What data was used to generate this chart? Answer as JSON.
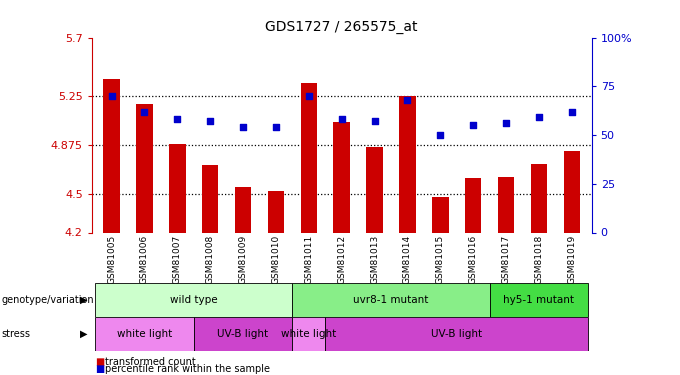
{
  "title": "GDS1727 / 265575_at",
  "samples": [
    "GSM81005",
    "GSM81006",
    "GSM81007",
    "GSM81008",
    "GSM81009",
    "GSM81010",
    "GSM81011",
    "GSM81012",
    "GSM81013",
    "GSM81014",
    "GSM81015",
    "GSM81016",
    "GSM81017",
    "GSM81018",
    "GSM81019"
  ],
  "transformed_count": [
    5.38,
    5.19,
    4.88,
    4.72,
    4.55,
    4.52,
    5.35,
    5.05,
    4.86,
    5.25,
    4.47,
    4.62,
    4.63,
    4.73,
    4.83
  ],
  "percentile_rank": [
    70,
    62,
    58,
    57,
    54,
    54,
    70,
    58,
    57,
    68,
    50,
    55,
    56,
    59,
    62
  ],
  "ylim_left": [
    4.2,
    5.7
  ],
  "ylim_right": [
    0,
    100
  ],
  "yticks_left": [
    4.2,
    4.5,
    4.875,
    5.25,
    5.7
  ],
  "ytick_labels_left": [
    "4.2",
    "4.5",
    "4.875",
    "5.25",
    "5.7"
  ],
  "yticks_right": [
    0,
    25,
    50,
    75,
    100
  ],
  "ytick_labels_right": [
    "0",
    "25",
    "50",
    "75",
    "100%"
  ],
  "hlines": [
    4.5,
    4.875,
    5.25
  ],
  "bar_color": "#cc0000",
  "dot_color": "#0000cc",
  "bar_width": 0.5,
  "genotype_groups": [
    {
      "label": "wild type",
      "start": 0,
      "end": 6,
      "color": "#ccffcc"
    },
    {
      "label": "uvr8-1 mutant",
      "start": 6,
      "end": 12,
      "color": "#88ee88"
    },
    {
      "label": "hy5-1 mutant",
      "start": 12,
      "end": 15,
      "color": "#44dd44"
    }
  ],
  "stress_groups": [
    {
      "label": "white light",
      "start": 0,
      "end": 3,
      "color": "#ee88ee"
    },
    {
      "label": "UV-B light",
      "start": 3,
      "end": 6,
      "color": "#cc44cc"
    },
    {
      "label": "white light",
      "start": 6,
      "end": 7,
      "color": "#ee88ee"
    },
    {
      "label": "UV-B light",
      "start": 7,
      "end": 15,
      "color": "#cc44cc"
    }
  ],
  "background_color": "#ffffff",
  "tick_bg_color": "#cccccc",
  "axis_color_left": "#cc0000",
  "axis_color_right": "#0000cc",
  "legend": [
    {
      "label": "transformed count",
      "color": "#cc0000"
    },
    {
      "label": "percentile rank within the sample",
      "color": "#0000cc"
    }
  ]
}
